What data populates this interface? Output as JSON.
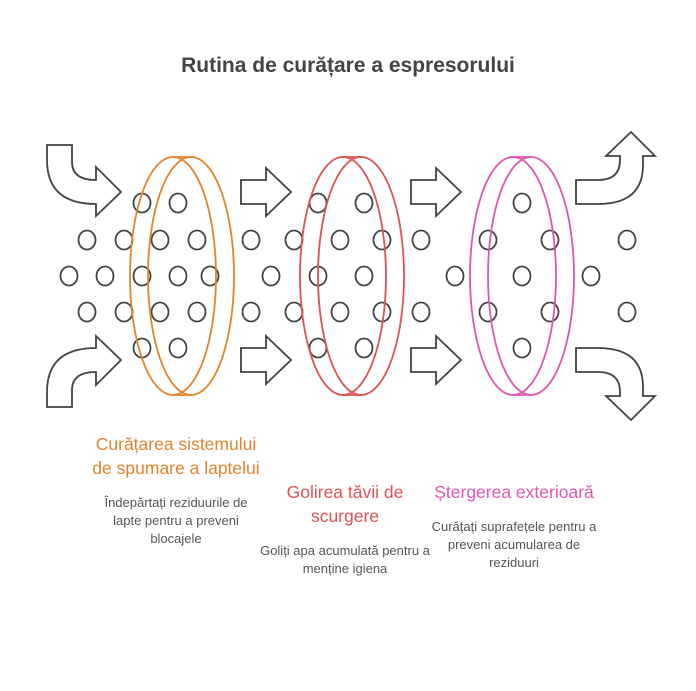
{
  "title": "Rutina de curățare a espresorului",
  "colors": {
    "stroke": "#444444",
    "step1": "#E4832E",
    "step2": "#E05252",
    "step3": "#E055B0"
  },
  "steps": [
    {
      "title": "Curățarea sistemului de spumare a laptelui",
      "description": "Îndepărtați reziduurile de lapte pentru a preveni blocajele"
    },
    {
      "title": "Golirea tăvii de scurgere",
      "description": "Goliți apa acumulată pentru a menține igiena"
    },
    {
      "title": "Ștergerea exterioară",
      "description": "Curățați suprafețele pentru a preveni acumularea de reziduuri"
    }
  ]
}
